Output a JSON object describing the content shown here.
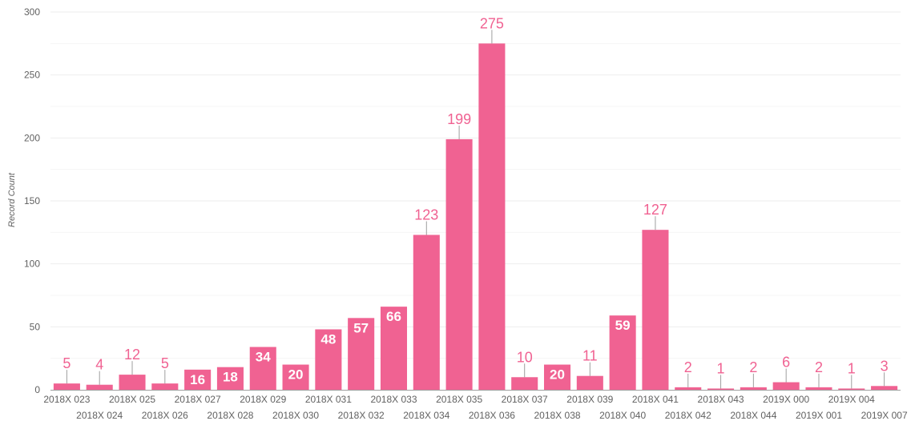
{
  "chart_data": {
    "type": "bar",
    "title": "",
    "xlabel": "",
    "ylabel": "Record Count",
    "ylim": [
      0,
      300
    ],
    "yticks": [
      0,
      50,
      100,
      150,
      200,
      250,
      300
    ],
    "grid": true,
    "bar_color": "#f06292",
    "label_color": "#f06292",
    "categories": [
      "2018X 023",
      "2018X 024",
      "2018X 025",
      "2018X 026",
      "2018X 027",
      "2018X 028",
      "2018X 029",
      "2018X 030",
      "2018X 031",
      "2018X 032",
      "2018X 033",
      "2018X 034",
      "2018X 035",
      "2018X 036",
      "2018X 037",
      "2018X 038",
      "2018X 039",
      "2018X 040",
      "2018X 041",
      "2018X 042",
      "2018X 043",
      "2018X 044",
      "2019X 000",
      "2019X 001",
      "2019X 004",
      "2019X 007"
    ],
    "values": [
      5,
      4,
      12,
      5,
      16,
      18,
      34,
      20,
      48,
      57,
      66,
      123,
      199,
      275,
      10,
      20,
      11,
      59,
      127,
      2,
      1,
      2,
      6,
      2,
      1,
      3
    ]
  }
}
